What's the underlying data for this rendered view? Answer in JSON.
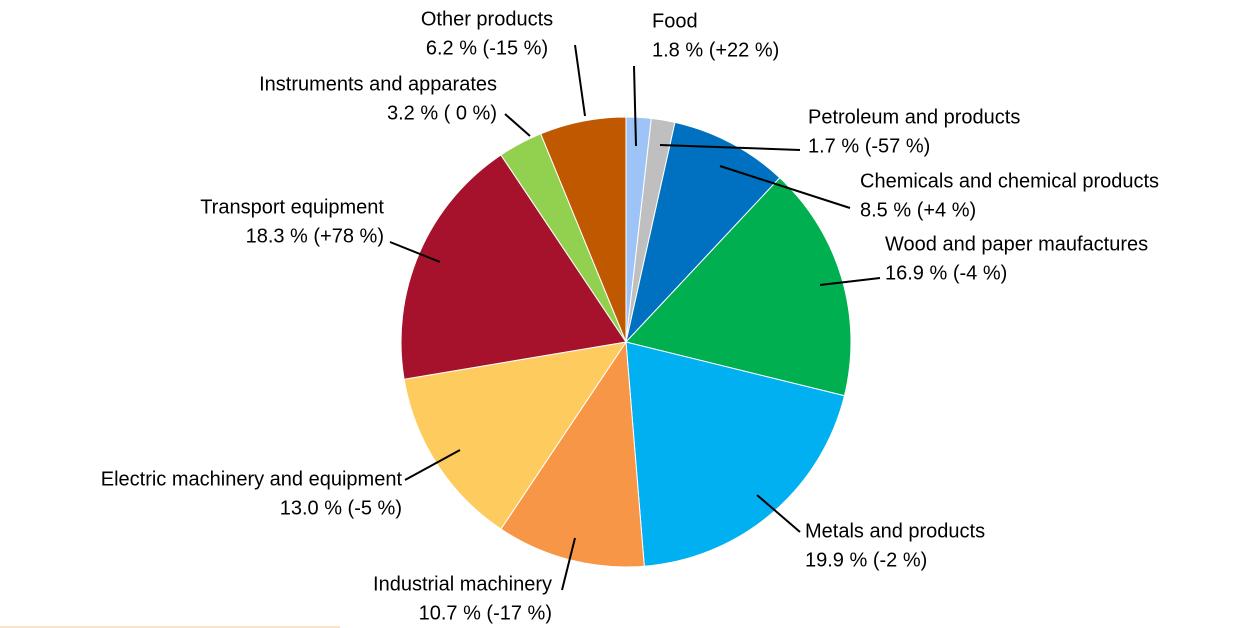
{
  "chart_data": {
    "type": "pie",
    "categories": [
      "Food",
      "Petroleum and products",
      "Chemicals and chemical products",
      "Wood and paper maufactures",
      "Metals and products",
      "Industrial machinery",
      "Electric machinery and equipment",
      "Transport equipment",
      "Instruments and apparates",
      "Other products"
    ],
    "values": [
      1.8,
      1.7,
      8.5,
      16.9,
      19.9,
      10.7,
      13.0,
      18.3,
      3.2,
      6.2
    ],
    "value_labels": [
      "1.8 % (+22 %)",
      "1.7 % (-57 %)",
      "8.5 % (+4 %)",
      "16.9 % (-4 %)",
      "19.9 % (-2 %)",
      "10.7 % (-17 %)",
      "13.0 % (-5 %)",
      "18.3 % (+78 %)",
      "3.2 % ( 0 %)",
      "6.2 % (-15 %)"
    ],
    "colors": [
      "#9dc3f7",
      "#bfbfbf",
      "#0070c0",
      "#00b050",
      "#00b0f0",
      "#f79646",
      "#fecb5e",
      "#a6122b",
      "#92d050",
      "#c05800"
    ]
  }
}
